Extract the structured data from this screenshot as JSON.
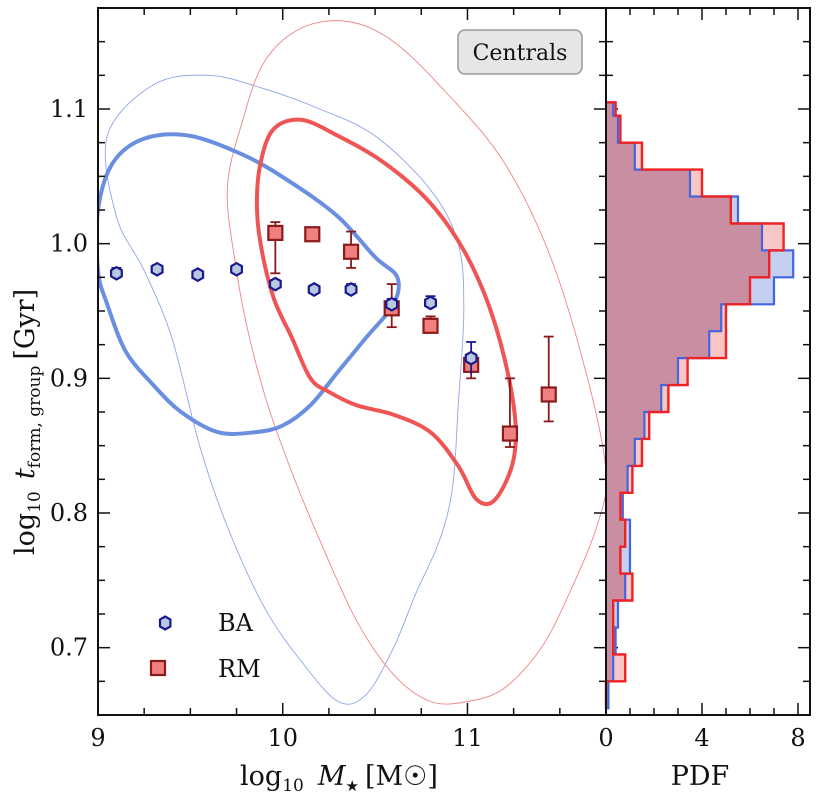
{
  "chart_data": [
    {
      "type": "scatter",
      "panel": "main",
      "xlim": [
        9.0,
        11.75
      ],
      "ylim": [
        0.65,
        1.175
      ],
      "x_ticks": [
        9,
        10,
        11
      ],
      "y_ticks": [
        0.7,
        0.8,
        0.9,
        1.0,
        1.1
      ],
      "x_tick_labels": [
        "9",
        "10",
        "11"
      ],
      "y_tick_labels": [
        "0.7",
        "0.8",
        "0.9",
        "1.0",
        "1.1"
      ],
      "xlabel": "log10 M★ [M☉]",
      "xlabel_main": "log",
      "xlabel_sub": "10",
      "xlabel_var": "M",
      "xlabel_star": "★",
      "xlabel_unit": "[M☉]",
      "ylabel": "log10 t_form,group [Gyr]",
      "ylabel_main": "log",
      "ylabel_sub": "10",
      "ylabel_var": "t",
      "ylabel_var_sub": "form, group",
      "ylabel_unit": "[Gyr]",
      "annotation": "Centrals",
      "series": [
        {
          "name": "BA",
          "marker": "hexagon",
          "color": "#1a1a8c",
          "fill": "#b8c8e0",
          "points": [
            {
              "x": 9.1,
              "y": 0.978,
              "err": 0.004
            },
            {
              "x": 9.32,
              "y": 0.981,
              "err": 0.003
            },
            {
              "x": 9.54,
              "y": 0.977,
              "err": 0.003
            },
            {
              "x": 9.75,
              "y": 0.981,
              "err": 0.003
            },
            {
              "x": 9.96,
              "y": 0.97,
              "err": 0.003
            },
            {
              "x": 10.17,
              "y": 0.966,
              "err": 0.003
            },
            {
              "x": 10.37,
              "y": 0.966,
              "err": 0.004
            },
            {
              "x": 10.59,
              "y": 0.955,
              "err": 0.004
            },
            {
              "x": 10.8,
              "y": 0.956,
              "err": 0.005
            },
            {
              "x": 11.02,
              "y": 0.915,
              "err": 0.012
            }
          ]
        },
        {
          "name": "RM",
          "marker": "square",
          "color": "#8b1a1a",
          "fill": "#f08080",
          "points": [
            {
              "x": 9.96,
              "y": 1.008,
              "err_lo": 0.03,
              "err_hi": 0.008
            },
            {
              "x": 10.16,
              "y": 1.007,
              "err_lo": 0.004,
              "err_hi": 0.005
            },
            {
              "x": 10.37,
              "y": 0.994,
              "err_lo": 0.012,
              "err_hi": 0.015
            },
            {
              "x": 10.59,
              "y": 0.952,
              "err_lo": 0.014,
              "err_hi": 0.018
            },
            {
              "x": 10.8,
              "y": 0.939,
              "err_lo": 0.005,
              "err_hi": 0.007
            },
            {
              "x": 11.02,
              "y": 0.91,
              "err_lo": 0.01,
              "err_hi": 0.008
            },
            {
              "x": 11.23,
              "y": 0.859,
              "err_lo": 0.01,
              "err_hi": 0.041
            },
            {
              "x": 11.44,
              "y": 0.888,
              "err_lo": 0.02,
              "err_hi": 0.043
            }
          ]
        }
      ],
      "contours": {
        "BA_inner": {
          "color": "#6b8fe0",
          "points": [
            [
              9.0,
              1.025
            ],
            [
              9.08,
              1.06
            ],
            [
              9.25,
              1.078
            ],
            [
              9.5,
              1.08
            ],
            [
              9.8,
              1.065
            ],
            [
              10.05,
              1.045
            ],
            [
              10.3,
              1.02
            ],
            [
              10.5,
              0.99
            ],
            [
              10.62,
              0.975
            ],
            [
              10.6,
              0.955
            ],
            [
              10.45,
              0.93
            ],
            [
              10.3,
              0.905
            ],
            [
              10.15,
              0.88
            ],
            [
              10.0,
              0.865
            ],
            [
              9.85,
              0.86
            ],
            [
              9.65,
              0.86
            ],
            [
              9.45,
              0.875
            ],
            [
              9.3,
              0.895
            ],
            [
              9.15,
              0.92
            ],
            [
              9.05,
              0.955
            ],
            [
              9.0,
              0.98
            ]
          ]
        },
        "RM_inner": {
          "color": "#f05555",
          "points": [
            [
              9.88,
              1.06
            ],
            [
              9.95,
              1.085
            ],
            [
              10.1,
              1.092
            ],
            [
              10.3,
              1.08
            ],
            [
              10.55,
              1.06
            ],
            [
              10.8,
              1.03
            ],
            [
              11.0,
              0.99
            ],
            [
              11.15,
              0.94
            ],
            [
              11.25,
              0.88
            ],
            [
              11.25,
              0.84
            ],
            [
              11.15,
              0.81
            ],
            [
              11.05,
              0.81
            ],
            [
              10.95,
              0.835
            ],
            [
              10.8,
              0.86
            ],
            [
              10.6,
              0.873
            ],
            [
              10.4,
              0.88
            ],
            [
              10.25,
              0.89
            ],
            [
              10.15,
              0.9
            ],
            [
              10.05,
              0.93
            ],
            [
              9.95,
              0.96
            ],
            [
              9.88,
              1.0
            ],
            [
              9.86,
              1.03
            ]
          ]
        },
        "BA_outer": {
          "color": "#8ea6e8",
          "points": [
            [
              9.05,
              1.08
            ],
            [
              9.3,
              1.118
            ],
            [
              9.6,
              1.125
            ],
            [
              9.9,
              1.115
            ],
            [
              10.2,
              1.1
            ],
            [
              10.5,
              1.08
            ],
            [
              10.8,
              1.04
            ],
            [
              10.95,
              1.0
            ],
            [
              10.98,
              0.95
            ],
            [
              10.95,
              0.88
            ],
            [
              10.92,
              0.82
            ],
            [
              10.85,
              0.78
            ],
            [
              10.72,
              0.74
            ],
            [
              10.6,
              0.7
            ],
            [
              10.45,
              0.665
            ],
            [
              10.3,
              0.66
            ],
            [
              10.1,
              0.69
            ],
            [
              9.9,
              0.73
            ],
            [
              9.7,
              0.79
            ],
            [
              9.55,
              0.85
            ],
            [
              9.4,
              0.93
            ],
            [
              9.25,
              0.98
            ],
            [
              9.1,
              1.02
            ]
          ]
        },
        "RM_outer": {
          "color": "#f08585",
          "points": [
            [
              9.7,
              1.04
            ],
            [
              9.78,
              1.09
            ],
            [
              9.9,
              1.135
            ],
            [
              10.1,
              1.16
            ],
            [
              10.35,
              1.165
            ],
            [
              10.6,
              1.15
            ],
            [
              10.9,
              1.11
            ],
            [
              11.2,
              1.06
            ],
            [
              11.45,
              0.99
            ],
            [
              11.65,
              0.9
            ],
            [
              11.75,
              0.83
            ],
            [
              11.7,
              0.79
            ],
            [
              11.55,
              0.74
            ],
            [
              11.4,
              0.7
            ],
            [
              11.2,
              0.67
            ],
            [
              11.0,
              0.66
            ],
            [
              10.8,
              0.66
            ],
            [
              10.6,
              0.68
            ],
            [
              10.4,
              0.72
            ],
            [
              10.2,
              0.78
            ],
            [
              10.05,
              0.83
            ],
            [
              9.92,
              0.88
            ],
            [
              9.82,
              0.93
            ],
            [
              9.75,
              0.98
            ]
          ]
        }
      },
      "legend": {
        "position": "lower-left",
        "entries": [
          "BA",
          "RM"
        ]
      }
    },
    {
      "type": "histogram",
      "panel": "side",
      "orientation": "horizontal",
      "xlabel": "PDF",
      "xlim": [
        0,
        8.5
      ],
      "ylim": [
        0.65,
        1.175
      ],
      "x_ticks": [
        0,
        4,
        8
      ],
      "x_tick_labels": [
        "0",
        "4",
        "8"
      ],
      "bins": [
        0.655,
        0.665,
        0.675,
        0.685,
        0.695,
        0.705,
        0.715,
        0.725,
        0.735,
        0.745,
        0.755,
        0.765,
        0.775,
        0.785,
        0.795,
        0.805,
        0.815,
        0.825,
        0.835,
        0.845,
        0.855,
        0.865,
        0.875,
        0.885,
        0.895,
        0.905,
        0.915,
        0.925,
        0.935,
        0.945,
        0.955,
        0.965,
        0.975,
        0.985,
        0.995,
        1.005,
        1.015,
        1.025,
        1.035,
        1.045,
        1.055,
        1.065,
        1.075,
        1.085,
        1.095,
        1.105
      ],
      "series": [
        {
          "name": "BA",
          "color": "#4466dd",
          "fill": "#b8c8f0",
          "values": [
            0.1,
            0.1,
            0.3,
            0.3,
            0.4,
            0.4,
            0.5,
            0.5,
            0.8,
            0.8,
            1.0,
            1.0,
            1.0,
            1.0,
            0.7,
            0.7,
            0.9,
            0.9,
            1.2,
            1.2,
            1.6,
            1.6,
            2.3,
            2.3,
            3.0,
            3.0,
            4.3,
            4.3,
            4.8,
            4.8,
            7.0,
            7.0,
            7.8,
            7.8,
            6.5,
            6.5,
            5.5,
            5.5,
            3.5,
            3.5,
            1.2,
            1.2,
            0.5,
            0.5,
            0.3
          ]
        },
        {
          "name": "RM",
          "color": "#ee2222",
          "fill": "#f5a0a0",
          "values": [
            0.0,
            0.0,
            0.8,
            0.8,
            0.3,
            0.3,
            0.3,
            0.3,
            1.1,
            1.1,
            0.6,
            0.6,
            0.8,
            0.8,
            0.6,
            0.6,
            1.1,
            1.1,
            1.5,
            1.5,
            1.8,
            1.8,
            2.6,
            2.6,
            3.4,
            3.4,
            5.0,
            5.0,
            5.0,
            5.0,
            6.0,
            6.0,
            6.8,
            6.8,
            7.4,
            7.4,
            5.2,
            5.2,
            4.0,
            4.0,
            1.5,
            1.5,
            0.6,
            0.6,
            0.4
          ]
        }
      ]
    }
  ]
}
